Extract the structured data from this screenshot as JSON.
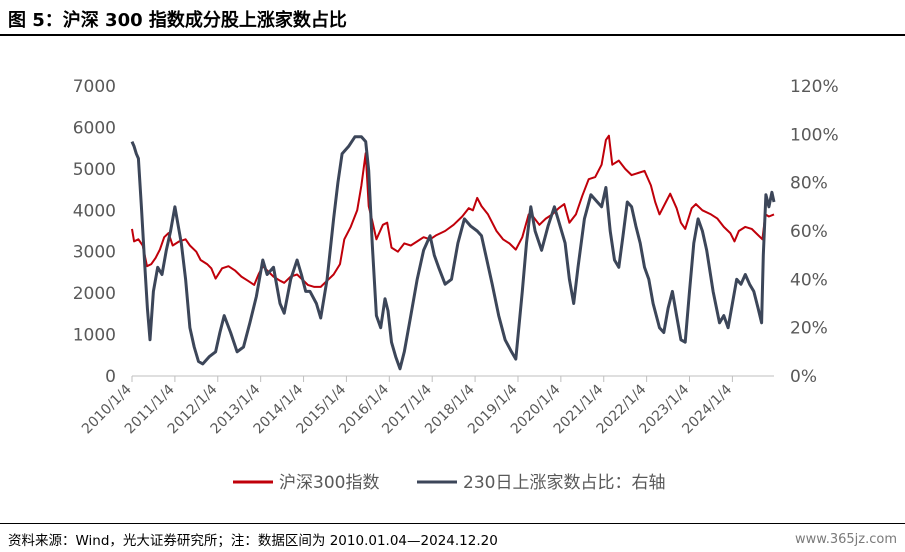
{
  "page": {
    "title": "图 5：沪深 300 指数成分股上涨家数占比",
    "source": "资料来源：Wind，光大证券研究所；注：数据区间为 2010.01.04—2024.12.20",
    "watermark": "www.365jz.com"
  },
  "colors": {
    "index": "#c0000a",
    "ratio": "#3c4659",
    "axis": "#bfbfbf",
    "tick_label": "#595959"
  },
  "chart_data": {
    "type": "line",
    "title": "",
    "x_tick_labels": [
      "2010/1/4",
      "2011/1/4",
      "2012/1/4",
      "2013/1/4",
      "2014/1/4",
      "2015/1/4",
      "2016/1/4",
      "2017/1/4",
      "2018/1/4",
      "2019/1/4",
      "2020/1/4",
      "2021/1/4",
      "2022/1/4",
      "2023/1/4",
      "2024/1/4"
    ],
    "x_range": [
      2010.0,
      2024.97
    ],
    "y_left": {
      "min": 0,
      "max": 7000,
      "ticks": [
        "0",
        "1000",
        "2000",
        "3000",
        "4000",
        "5000",
        "6000",
        "7000"
      ]
    },
    "y_right": {
      "min": 0,
      "max": 1.2,
      "ticks": [
        "0%",
        "20%",
        "40%",
        "60%",
        "80%",
        "100%",
        "120%"
      ]
    },
    "grid": false,
    "legend_position": "bottom",
    "series": [
      {
        "name": "沪深300指数",
        "axis": "left",
        "color": "#c0000a",
        "points": [
          [
            2010.0,
            3550
          ],
          [
            2010.05,
            3250
          ],
          [
            2010.15,
            3300
          ],
          [
            2010.25,
            3150
          ],
          [
            2010.35,
            2650
          ],
          [
            2010.45,
            2700
          ],
          [
            2010.55,
            2850
          ],
          [
            2010.65,
            3050
          ],
          [
            2010.75,
            3350
          ],
          [
            2010.85,
            3450
          ],
          [
            2010.95,
            3150
          ],
          [
            2011.1,
            3250
          ],
          [
            2011.25,
            3300
          ],
          [
            2011.35,
            3150
          ],
          [
            2011.5,
            3000
          ],
          [
            2011.6,
            2800
          ],
          [
            2011.75,
            2700
          ],
          [
            2011.85,
            2600
          ],
          [
            2011.95,
            2350
          ],
          [
            2012.1,
            2600
          ],
          [
            2012.25,
            2650
          ],
          [
            2012.4,
            2550
          ],
          [
            2012.55,
            2400
          ],
          [
            2012.7,
            2300
          ],
          [
            2012.85,
            2200
          ],
          [
            2012.95,
            2450
          ],
          [
            2013.05,
            2650
          ],
          [
            2013.15,
            2550
          ],
          [
            2013.3,
            2400
          ],
          [
            2013.45,
            2300
          ],
          [
            2013.55,
            2250
          ],
          [
            2013.7,
            2400
          ],
          [
            2013.85,
            2450
          ],
          [
            2013.95,
            2350
          ],
          [
            2014.1,
            2200
          ],
          [
            2014.25,
            2150
          ],
          [
            2014.4,
            2150
          ],
          [
            2014.55,
            2300
          ],
          [
            2014.7,
            2450
          ],
          [
            2014.85,
            2700
          ],
          [
            2014.95,
            3300
          ],
          [
            2015.1,
            3600
          ],
          [
            2015.25,
            4000
          ],
          [
            2015.35,
            4600
          ],
          [
            2015.45,
            5380
          ],
          [
            2015.52,
            4100
          ],
          [
            2015.6,
            3750
          ],
          [
            2015.7,
            3300
          ],
          [
            2015.85,
            3650
          ],
          [
            2015.95,
            3700
          ],
          [
            2016.05,
            3100
          ],
          [
            2016.2,
            3000
          ],
          [
            2016.35,
            3200
          ],
          [
            2016.5,
            3150
          ],
          [
            2016.65,
            3250
          ],
          [
            2016.8,
            3350
          ],
          [
            2016.95,
            3300
          ],
          [
            2017.1,
            3400
          ],
          [
            2017.3,
            3500
          ],
          [
            2017.5,
            3650
          ],
          [
            2017.7,
            3850
          ],
          [
            2017.85,
            4050
          ],
          [
            2017.95,
            4000
          ],
          [
            2018.05,
            4300
          ],
          [
            2018.15,
            4100
          ],
          [
            2018.3,
            3900
          ],
          [
            2018.5,
            3500
          ],
          [
            2018.65,
            3300
          ],
          [
            2018.8,
            3200
          ],
          [
            2018.95,
            3050
          ],
          [
            2019.1,
            3350
          ],
          [
            2019.25,
            3900
          ],
          [
            2019.35,
            3850
          ],
          [
            2019.5,
            3650
          ],
          [
            2019.65,
            3800
          ],
          [
            2019.8,
            3900
          ],
          [
            2019.95,
            4050
          ],
          [
            2020.08,
            4150
          ],
          [
            2020.2,
            3700
          ],
          [
            2020.35,
            3900
          ],
          [
            2020.5,
            4350
          ],
          [
            2020.65,
            4750
          ],
          [
            2020.8,
            4800
          ],
          [
            2020.95,
            5100
          ],
          [
            2021.05,
            5700
          ],
          [
            2021.12,
            5800
          ],
          [
            2021.2,
            5100
          ],
          [
            2021.35,
            5200
          ],
          [
            2021.5,
            5000
          ],
          [
            2021.65,
            4850
          ],
          [
            2021.8,
            4900
          ],
          [
            2021.95,
            4950
          ],
          [
            2022.1,
            4600
          ],
          [
            2022.2,
            4200
          ],
          [
            2022.3,
            3900
          ],
          [
            2022.45,
            4200
          ],
          [
            2022.55,
            4400
          ],
          [
            2022.7,
            4050
          ],
          [
            2022.8,
            3700
          ],
          [
            2022.9,
            3550
          ],
          [
            2023.05,
            4050
          ],
          [
            2023.15,
            4150
          ],
          [
            2023.3,
            4000
          ],
          [
            2023.5,
            3900
          ],
          [
            2023.65,
            3800
          ],
          [
            2023.8,
            3600
          ],
          [
            2023.95,
            3450
          ],
          [
            2024.05,
            3250
          ],
          [
            2024.15,
            3500
          ],
          [
            2024.3,
            3600
          ],
          [
            2024.45,
            3550
          ],
          [
            2024.6,
            3400
          ],
          [
            2024.7,
            3300
          ],
          [
            2024.77,
            3900
          ],
          [
            2024.85,
            3850
          ],
          [
            2024.97,
            3900
          ]
        ]
      },
      {
        "name": "230日上涨家数占比：右轴",
        "axis": "right",
        "color": "#3c4659",
        "points": [
          [
            2010.0,
            0.97
          ],
          [
            2010.05,
            0.95
          ],
          [
            2010.1,
            0.92
          ],
          [
            2010.15,
            0.9
          ],
          [
            2010.22,
            0.7
          ],
          [
            2010.3,
            0.45
          ],
          [
            2010.36,
            0.28
          ],
          [
            2010.42,
            0.15
          ],
          [
            2010.5,
            0.35
          ],
          [
            2010.6,
            0.45
          ],
          [
            2010.7,
            0.42
          ],
          [
            2010.8,
            0.52
          ],
          [
            2010.9,
            0.6
          ],
          [
            2011.0,
            0.7
          ],
          [
            2011.08,
            0.62
          ],
          [
            2011.15,
            0.55
          ],
          [
            2011.25,
            0.4
          ],
          [
            2011.35,
            0.2
          ],
          [
            2011.45,
            0.12
          ],
          [
            2011.55,
            0.06
          ],
          [
            2011.65,
            0.05
          ],
          [
            2011.8,
            0.08
          ],
          [
            2011.95,
            0.1
          ],
          [
            2012.05,
            0.18
          ],
          [
            2012.15,
            0.25
          ],
          [
            2012.3,
            0.18
          ],
          [
            2012.45,
            0.1
          ],
          [
            2012.6,
            0.12
          ],
          [
            2012.75,
            0.22
          ],
          [
            2012.9,
            0.33
          ],
          [
            2013.05,
            0.48
          ],
          [
            2013.15,
            0.42
          ],
          [
            2013.3,
            0.45
          ],
          [
            2013.45,
            0.3
          ],
          [
            2013.55,
            0.26
          ],
          [
            2013.7,
            0.4
          ],
          [
            2013.85,
            0.48
          ],
          [
            2013.95,
            0.42
          ],
          [
            2014.05,
            0.35
          ],
          [
            2014.15,
            0.35
          ],
          [
            2014.3,
            0.3
          ],
          [
            2014.4,
            0.24
          ],
          [
            2014.55,
            0.4
          ],
          [
            2014.7,
            0.65
          ],
          [
            2014.8,
            0.8
          ],
          [
            2014.9,
            0.92
          ],
          [
            2015.05,
            0.95
          ],
          [
            2015.2,
            0.99
          ],
          [
            2015.35,
            0.99
          ],
          [
            2015.45,
            0.97
          ],
          [
            2015.52,
            0.85
          ],
          [
            2015.6,
            0.55
          ],
          [
            2015.7,
            0.25
          ],
          [
            2015.8,
            0.2
          ],
          [
            2015.9,
            0.32
          ],
          [
            2015.97,
            0.27
          ],
          [
            2016.05,
            0.14
          ],
          [
            2016.15,
            0.08
          ],
          [
            2016.25,
            0.03
          ],
          [
            2016.35,
            0.1
          ],
          [
            2016.5,
            0.25
          ],
          [
            2016.65,
            0.4
          ],
          [
            2016.8,
            0.52
          ],
          [
            2016.95,
            0.58
          ],
          [
            2017.05,
            0.5
          ],
          [
            2017.15,
            0.45
          ],
          [
            2017.3,
            0.38
          ],
          [
            2017.45,
            0.4
          ],
          [
            2017.6,
            0.55
          ],
          [
            2017.75,
            0.65
          ],
          [
            2017.9,
            0.62
          ],
          [
            2018.05,
            0.6
          ],
          [
            2018.15,
            0.58
          ],
          [
            2018.25,
            0.5
          ],
          [
            2018.4,
            0.38
          ],
          [
            2018.55,
            0.25
          ],
          [
            2018.7,
            0.15
          ],
          [
            2018.85,
            0.1
          ],
          [
            2018.95,
            0.07
          ],
          [
            2019.1,
            0.35
          ],
          [
            2019.2,
            0.55
          ],
          [
            2019.3,
            0.7
          ],
          [
            2019.4,
            0.6
          ],
          [
            2019.55,
            0.52
          ],
          [
            2019.7,
            0.62
          ],
          [
            2019.85,
            0.7
          ],
          [
            2019.95,
            0.64
          ],
          [
            2020.1,
            0.55
          ],
          [
            2020.2,
            0.4
          ],
          [
            2020.3,
            0.3
          ],
          [
            2020.4,
            0.45
          ],
          [
            2020.55,
            0.65
          ],
          [
            2020.7,
            0.75
          ],
          [
            2020.85,
            0.72
          ],
          [
            2020.95,
            0.7
          ],
          [
            2021.05,
            0.78
          ],
          [
            2021.15,
            0.6
          ],
          [
            2021.25,
            0.48
          ],
          [
            2021.35,
            0.45
          ],
          [
            2021.45,
            0.58
          ],
          [
            2021.55,
            0.72
          ],
          [
            2021.65,
            0.7
          ],
          [
            2021.75,
            0.62
          ],
          [
            2021.85,
            0.55
          ],
          [
            2021.95,
            0.45
          ],
          [
            2022.05,
            0.4
          ],
          [
            2022.15,
            0.3
          ],
          [
            2022.3,
            0.2
          ],
          [
            2022.4,
            0.18
          ],
          [
            2022.5,
            0.28
          ],
          [
            2022.6,
            0.35
          ],
          [
            2022.7,
            0.25
          ],
          [
            2022.8,
            0.15
          ],
          [
            2022.9,
            0.14
          ],
          [
            2023.0,
            0.35
          ],
          [
            2023.1,
            0.55
          ],
          [
            2023.2,
            0.65
          ],
          [
            2023.3,
            0.6
          ],
          [
            2023.4,
            0.52
          ],
          [
            2023.55,
            0.35
          ],
          [
            2023.7,
            0.22
          ],
          [
            2023.8,
            0.25
          ],
          [
            2023.9,
            0.2
          ],
          [
            2024.0,
            0.3
          ],
          [
            2024.1,
            0.4
          ],
          [
            2024.2,
            0.38
          ],
          [
            2024.3,
            0.42
          ],
          [
            2024.4,
            0.38
          ],
          [
            2024.5,
            0.35
          ],
          [
            2024.6,
            0.28
          ],
          [
            2024.68,
            0.22
          ],
          [
            2024.72,
            0.5
          ],
          [
            2024.78,
            0.75
          ],
          [
            2024.85,
            0.7
          ],
          [
            2024.92,
            0.76
          ],
          [
            2024.97,
            0.72
          ]
        ]
      }
    ]
  }
}
